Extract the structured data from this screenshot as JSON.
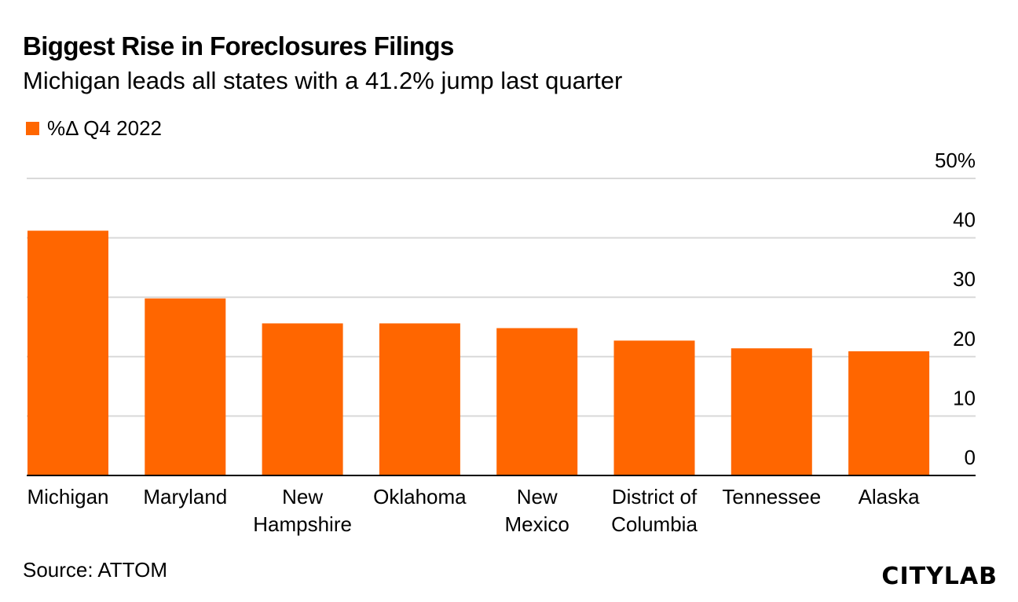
{
  "title": "Biggest Rise in Foreclosures Filings",
  "subtitle": "Michigan leads all states with a 41.2% jump last quarter",
  "legend": {
    "label": "%Δ Q4 2022"
  },
  "source": "Source: ATTOM",
  "brand": "CITYLAB",
  "colors": {
    "bar": "#ff6600",
    "grid": "#d9d9d9",
    "axis": "#000000"
  },
  "chart_data": {
    "type": "bar",
    "categories": [
      "Michigan",
      "Maryland",
      "New Hampshire",
      "Oklahoma",
      "New Mexico",
      "District of Columbia",
      "Tennessee",
      "Alaska"
    ],
    "category_lines": [
      [
        "Michigan"
      ],
      [
        "Maryland"
      ],
      [
        "New",
        "Hampshire"
      ],
      [
        "Oklahoma"
      ],
      [
        "New",
        "Mexico"
      ],
      [
        "District of",
        "Columbia"
      ],
      [
        "Tennessee"
      ],
      [
        "Alaska"
      ]
    ],
    "series": [
      {
        "name": "%Δ Q4 2022",
        "values": [
          41.2,
          29.8,
          25.6,
          25.6,
          24.8,
          22.7,
          21.4,
          20.9
        ]
      }
    ],
    "ylim": [
      0,
      50
    ],
    "yticks": [
      0,
      10,
      20,
      30,
      40,
      50
    ],
    "ytick_labels": [
      "0",
      "10",
      "20",
      "30",
      "40",
      "50%"
    ],
    "grid": true,
    "y_axis_position": "right",
    "legend_position": "top-left"
  }
}
